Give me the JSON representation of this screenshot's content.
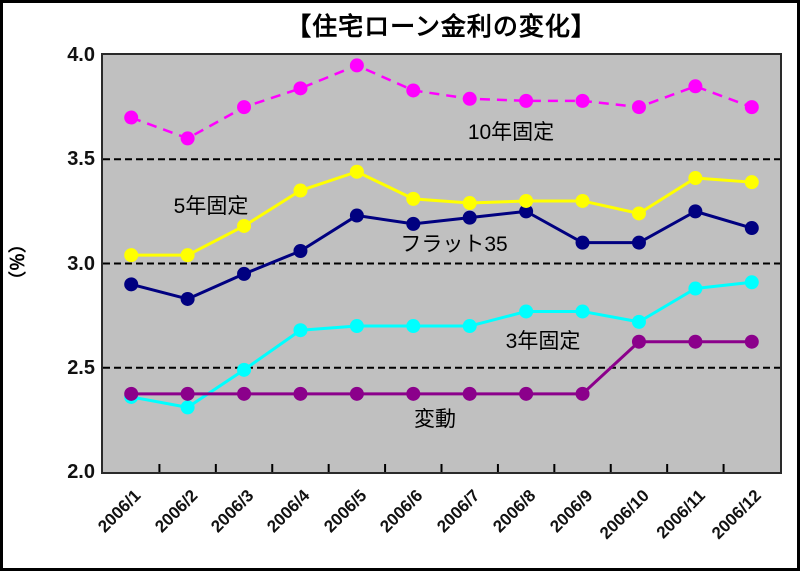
{
  "title": "【住宅ローン金利の変化】",
  "y_axis": {
    "unit_label": "（％）",
    "tick_labels": [
      "4.0",
      "3.5",
      "3.0",
      "2.5",
      "2.0"
    ]
  },
  "x_axis": {
    "labels": [
      "2006/1",
      "2006/2",
      "2006/3",
      "2006/4",
      "2006/5",
      "2006/6",
      "2006/7",
      "2006/8",
      "2006/9",
      "2006/10",
      "2006/11",
      "2006/12"
    ]
  },
  "chart_data": {
    "type": "line",
    "title": "【住宅ローン金利の変化】",
    "categories": [
      "2006/1",
      "2006/2",
      "2006/3",
      "2006/4",
      "2006/5",
      "2006/6",
      "2006/7",
      "2006/8",
      "2006/9",
      "2006/10",
      "2006/11",
      "2006/12"
    ],
    "ylabel": "（％）",
    "ylim": [
      2.0,
      4.0
    ],
    "ytick_interval": 0.5,
    "gridline_values": [
      3.5,
      3.0,
      2.5
    ],
    "gridline_style": "dashed",
    "legend_position": "inline-labels",
    "plot_background": "#c0c0c0",
    "series": [
      {
        "name": "10年固定",
        "slug": "10yr-fixed",
        "color": "#ff00ff",
        "line_style": "dashed",
        "values": [
          3.7,
          3.6,
          3.75,
          3.84,
          3.95,
          3.83,
          3.79,
          3.78,
          3.78,
          3.75,
          3.85,
          3.75
        ],
        "label_xy": [
          408,
          76
        ]
      },
      {
        "name": "フラット35",
        "slug": "flat35",
        "color": "#000080",
        "line_style": "solid",
        "values": [
          2.9,
          2.83,
          2.95,
          3.06,
          3.23,
          3.19,
          3.22,
          3.25,
          3.1,
          3.1,
          3.25,
          3.17
        ],
        "label_xy": [
          351,
          188
        ]
      },
      {
        "name": "5年固定",
        "slug": "5yr-fixed",
        "color": "#ffff00",
        "line_style": "solid",
        "values": [
          3.04,
          3.04,
          3.18,
          3.35,
          3.44,
          3.31,
          3.29,
          3.3,
          3.3,
          3.24,
          3.41,
          3.39
        ],
        "label_xy": [
          108,
          150
        ]
      },
      {
        "name": "3年固定",
        "slug": "3yr-fixed",
        "color": "#00ffff",
        "line_style": "solid",
        "values": [
          2.36,
          2.31,
          2.49,
          2.68,
          2.7,
          2.7,
          2.7,
          2.77,
          2.77,
          2.72,
          2.88,
          2.91
        ],
        "label_xy": [
          440,
          285
        ]
      },
      {
        "name": "変動",
        "slug": "variable",
        "color": "#8b008b",
        "line_style": "solid",
        "values": [
          2.375,
          2.375,
          2.375,
          2.375,
          2.375,
          2.375,
          2.375,
          2.375,
          2.375,
          2.625,
          2.625,
          2.625
        ],
        "label_xy": [
          332,
          363
        ]
      }
    ]
  }
}
